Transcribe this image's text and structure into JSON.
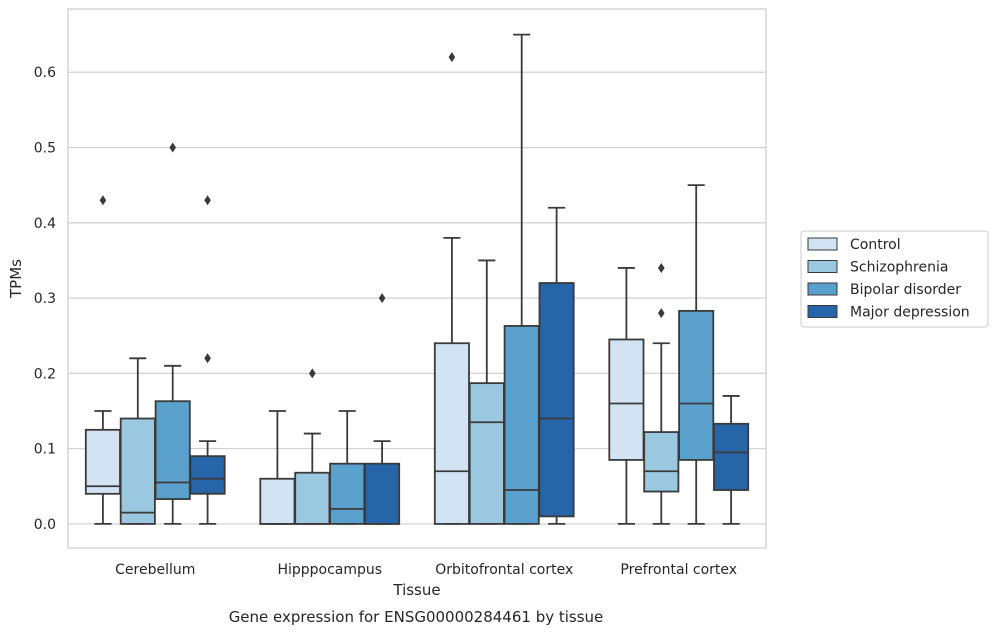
{
  "caption": "Gene expression for ENSG00000284461 by tissue",
  "colors": {
    "box_edge": "#3a3a3a",
    "grid": "#cccccc",
    "frame": "#cccccc",
    "series": [
      "#d2e3f3",
      "#9ac8e0",
      "#5aa0cd",
      "#2565a8"
    ]
  },
  "chart_data": {
    "type": "box",
    "xlabel": "Tissue",
    "ylabel": "TPMs",
    "ylim": [
      -0.032,
      0.684
    ],
    "yticks": [
      0.0,
      0.1,
      0.2,
      0.3,
      0.4,
      0.5,
      0.6
    ],
    "ytick_labels": [
      "0.0",
      "0.1",
      "0.2",
      "0.3",
      "0.4",
      "0.5",
      "0.6"
    ],
    "grid": "horizontal",
    "legend_position": "right",
    "categories": [
      "Cerebellum",
      "Hipppocampus",
      "Orbitofrontal cortex",
      "Prefrontal cortex"
    ],
    "series": [
      {
        "name": "Control",
        "boxes": [
          {
            "whislo": 0.0,
            "q1": 0.04,
            "med": 0.05,
            "q3": 0.125,
            "whishi": 0.15,
            "fliers": [
              0.43
            ]
          },
          {
            "whislo": 0.0,
            "q1": 0.0,
            "med": 0.0,
            "q3": 0.06,
            "whishi": 0.15,
            "fliers": []
          },
          {
            "whislo": 0.0,
            "q1": 0.0,
            "med": 0.07,
            "q3": 0.24,
            "whishi": 0.38,
            "fliers": [
              0.62
            ]
          },
          {
            "whislo": 0.0,
            "q1": 0.085,
            "med": 0.16,
            "q3": 0.245,
            "whishi": 0.34,
            "fliers": []
          }
        ]
      },
      {
        "name": "Schizophrenia",
        "boxes": [
          {
            "whislo": 0.0,
            "q1": 0.0,
            "med": 0.015,
            "q3": 0.14,
            "whishi": 0.22,
            "fliers": []
          },
          {
            "whislo": 0.0,
            "q1": 0.0,
            "med": 0.0,
            "q3": 0.068,
            "whishi": 0.12,
            "fliers": [
              0.2
            ]
          },
          {
            "whislo": 0.0,
            "q1": 0.0,
            "med": 0.135,
            "q3": 0.187,
            "whishi": 0.35,
            "fliers": []
          },
          {
            "whislo": 0.0,
            "q1": 0.043,
            "med": 0.07,
            "q3": 0.122,
            "whishi": 0.24,
            "fliers": [
              0.28,
              0.34
            ]
          }
        ]
      },
      {
        "name": "Bipolar disorder",
        "boxes": [
          {
            "whislo": 0.0,
            "q1": 0.033,
            "med": 0.055,
            "q3": 0.163,
            "whishi": 0.21,
            "fliers": [
              0.5
            ]
          },
          {
            "whislo": 0.0,
            "q1": 0.0,
            "med": 0.02,
            "q3": 0.08,
            "whishi": 0.15,
            "fliers": []
          },
          {
            "whislo": 0.0,
            "q1": 0.0,
            "med": 0.045,
            "q3": 0.263,
            "whishi": 0.65,
            "fliers": []
          },
          {
            "whislo": 0.0,
            "q1": 0.085,
            "med": 0.16,
            "q3": 0.283,
            "whishi": 0.45,
            "fliers": []
          }
        ]
      },
      {
        "name": "Major depression",
        "boxes": [
          {
            "whislo": 0.0,
            "q1": 0.04,
            "med": 0.06,
            "q3": 0.09,
            "whishi": 0.11,
            "fliers": [
              0.22,
              0.43
            ]
          },
          {
            "whislo": 0.0,
            "q1": 0.0,
            "med": 0.0,
            "q3": 0.08,
            "whishi": 0.11,
            "fliers": [
              0.3
            ]
          },
          {
            "whislo": 0.0,
            "q1": 0.01,
            "med": 0.14,
            "q3": 0.32,
            "whishi": 0.42,
            "fliers": []
          },
          {
            "whislo": 0.0,
            "q1": 0.045,
            "med": 0.095,
            "q3": 0.133,
            "whishi": 0.17,
            "fliers": []
          }
        ]
      }
    ]
  }
}
